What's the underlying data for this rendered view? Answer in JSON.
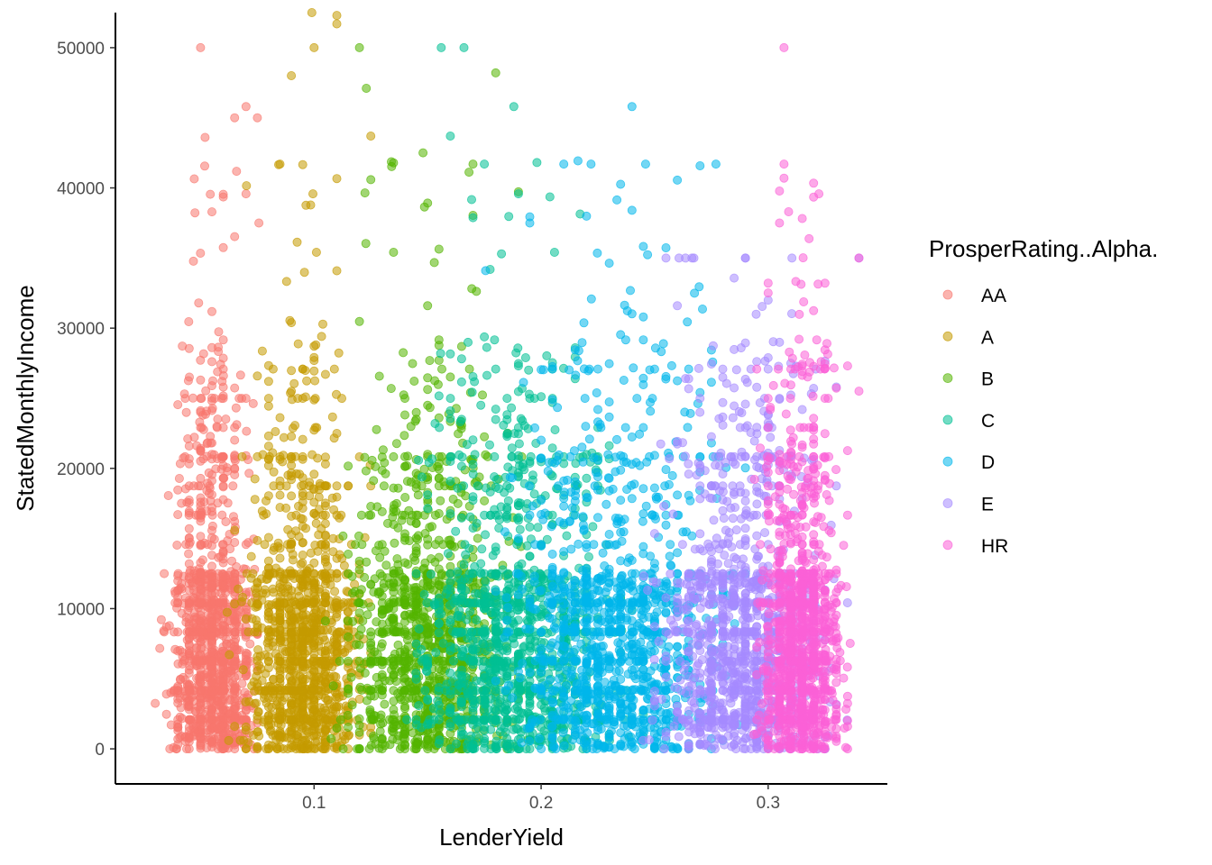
{
  "chart_data": {
    "type": "scatter",
    "xlabel": "LenderYield",
    "ylabel": "StatedMonthlyIncome",
    "xlim": [
      0.0125,
      0.3525
    ],
    "ylim": [
      -2500,
      52500
    ],
    "x_ticks": [
      0.1,
      0.2,
      0.3
    ],
    "x_tick_labels": [
      "0.1",
      "0.2",
      "0.3"
    ],
    "y_ticks": [
      0,
      10000,
      20000,
      30000,
      40000,
      50000
    ],
    "y_tick_labels": [
      "0",
      "10000",
      "20000",
      "30000",
      "40000",
      "50000"
    ],
    "grid": false,
    "legend": {
      "title": "ProsperRating..Alpha.",
      "position": "right"
    },
    "series": [
      {
        "name": "AA",
        "color": "#F8766D",
        "x_range": [
          0.03,
          0.08
        ],
        "y_max": 50000,
        "highlights": [
          [
            0.05,
            50000
          ],
          [
            0.07,
            45800
          ],
          [
            0.052,
            43600
          ],
          [
            0.065,
            45000
          ],
          [
            0.075,
            45000
          ]
        ]
      },
      {
        "name": "A",
        "color": "#C49A00",
        "x_range": [
          0.06,
          0.13
        ],
        "y_max": 52500,
        "highlights": [
          [
            0.099,
            52500
          ],
          [
            0.11,
            52300
          ],
          [
            0.1,
            50000
          ],
          [
            0.11,
            51700
          ],
          [
            0.09,
            48000
          ],
          [
            0.085,
            41700
          ],
          [
            0.125,
            43700
          ]
        ]
      },
      {
        "name": "B",
        "color": "#53B400",
        "x_range": [
          0.1,
          0.2
        ],
        "y_max": 50000,
        "highlights": [
          [
            0.12,
            50000
          ],
          [
            0.123,
            47100
          ],
          [
            0.18,
            48200
          ],
          [
            0.148,
            42500
          ],
          [
            0.17,
            41700
          ]
        ]
      },
      {
        "name": "C",
        "color": "#00C094",
        "x_range": [
          0.13,
          0.25
        ],
        "y_max": 50000,
        "highlights": [
          [
            0.156,
            50000
          ],
          [
            0.166,
            50000
          ],
          [
            0.188,
            45800
          ],
          [
            0.16,
            43700
          ],
          [
            0.175,
            41700
          ]
        ]
      },
      {
        "name": "D",
        "color": "#00B6EB",
        "x_range": [
          0.17,
          0.3
        ],
        "y_max": 45800,
        "highlights": [
          [
            0.24,
            45800
          ],
          [
            0.21,
            41700
          ],
          [
            0.246,
            41700
          ],
          [
            0.277,
            41700
          ],
          [
            0.222,
            41700
          ]
        ]
      },
      {
        "name": "E",
        "color": "#A58AFF",
        "x_range": [
          0.24,
          0.34
        ],
        "y_max": 35000,
        "highlights": [
          [
            0.34,
            35000
          ],
          [
            0.33,
            25800
          ],
          [
            0.31,
            27500
          ],
          [
            0.3,
            32000
          ],
          [
            0.26,
            31600
          ]
        ]
      },
      {
        "name": "HR",
        "color": "#FB61D7",
        "x_range": [
          0.29,
          0.34
        ],
        "y_max": 50000,
        "highlights": [
          [
            0.307,
            50000
          ],
          [
            0.307,
            41700
          ],
          [
            0.309,
            38300
          ],
          [
            0.305,
            37500
          ],
          [
            0.34,
            35000
          ],
          [
            0.307,
            40700
          ]
        ]
      }
    ]
  }
}
